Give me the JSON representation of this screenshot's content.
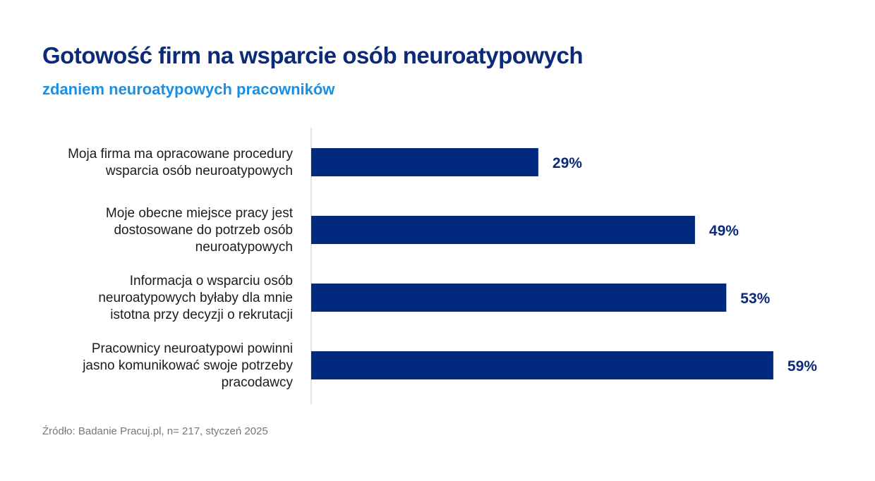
{
  "header": {
    "title": "Gotowość firm na wsparcie osób neuroatypowych",
    "subtitle": "zdaniem neuroatypowych pracowników"
  },
  "footer": {
    "source": "Źródło: Badanie Pracuj.pl, n= 217, styczeń 2025"
  },
  "colors": {
    "bar": "#00297f",
    "title": "#0b2a78",
    "subtitle": "#1a8fe3",
    "axis": "#c8c8c8"
  },
  "chart_data": {
    "type": "bar",
    "orientation": "horizontal",
    "title": "Gotowość firm na wsparcie osób neuroatypowych",
    "subtitle": "zdaniem neuroatypowych pracowników",
    "unit": "%",
    "categories": [
      [
        "Moja firma ma opracowane procedury",
        "wsparcia osób neuroatypowych"
      ],
      [
        "Moje obecne miejsce pracy jest",
        "dostosowane do potrzeb osób",
        "neuroatypowych"
      ],
      [
        "Informacja o wsparciu osób",
        "neuroatypowych byłaby dla mnie",
        "istotna przy decyzji o rekrutacji"
      ],
      [
        "Pracownicy neuroatypowi powinni",
        "jasno komunikować swoje potrzeby",
        "pracodawcy"
      ]
    ],
    "values": [
      29,
      49,
      53,
      59
    ],
    "value_labels": [
      "29%",
      "49%",
      "53%",
      "59%"
    ],
    "xlim": [
      0,
      100
    ],
    "grid": false,
    "legend": "none"
  }
}
